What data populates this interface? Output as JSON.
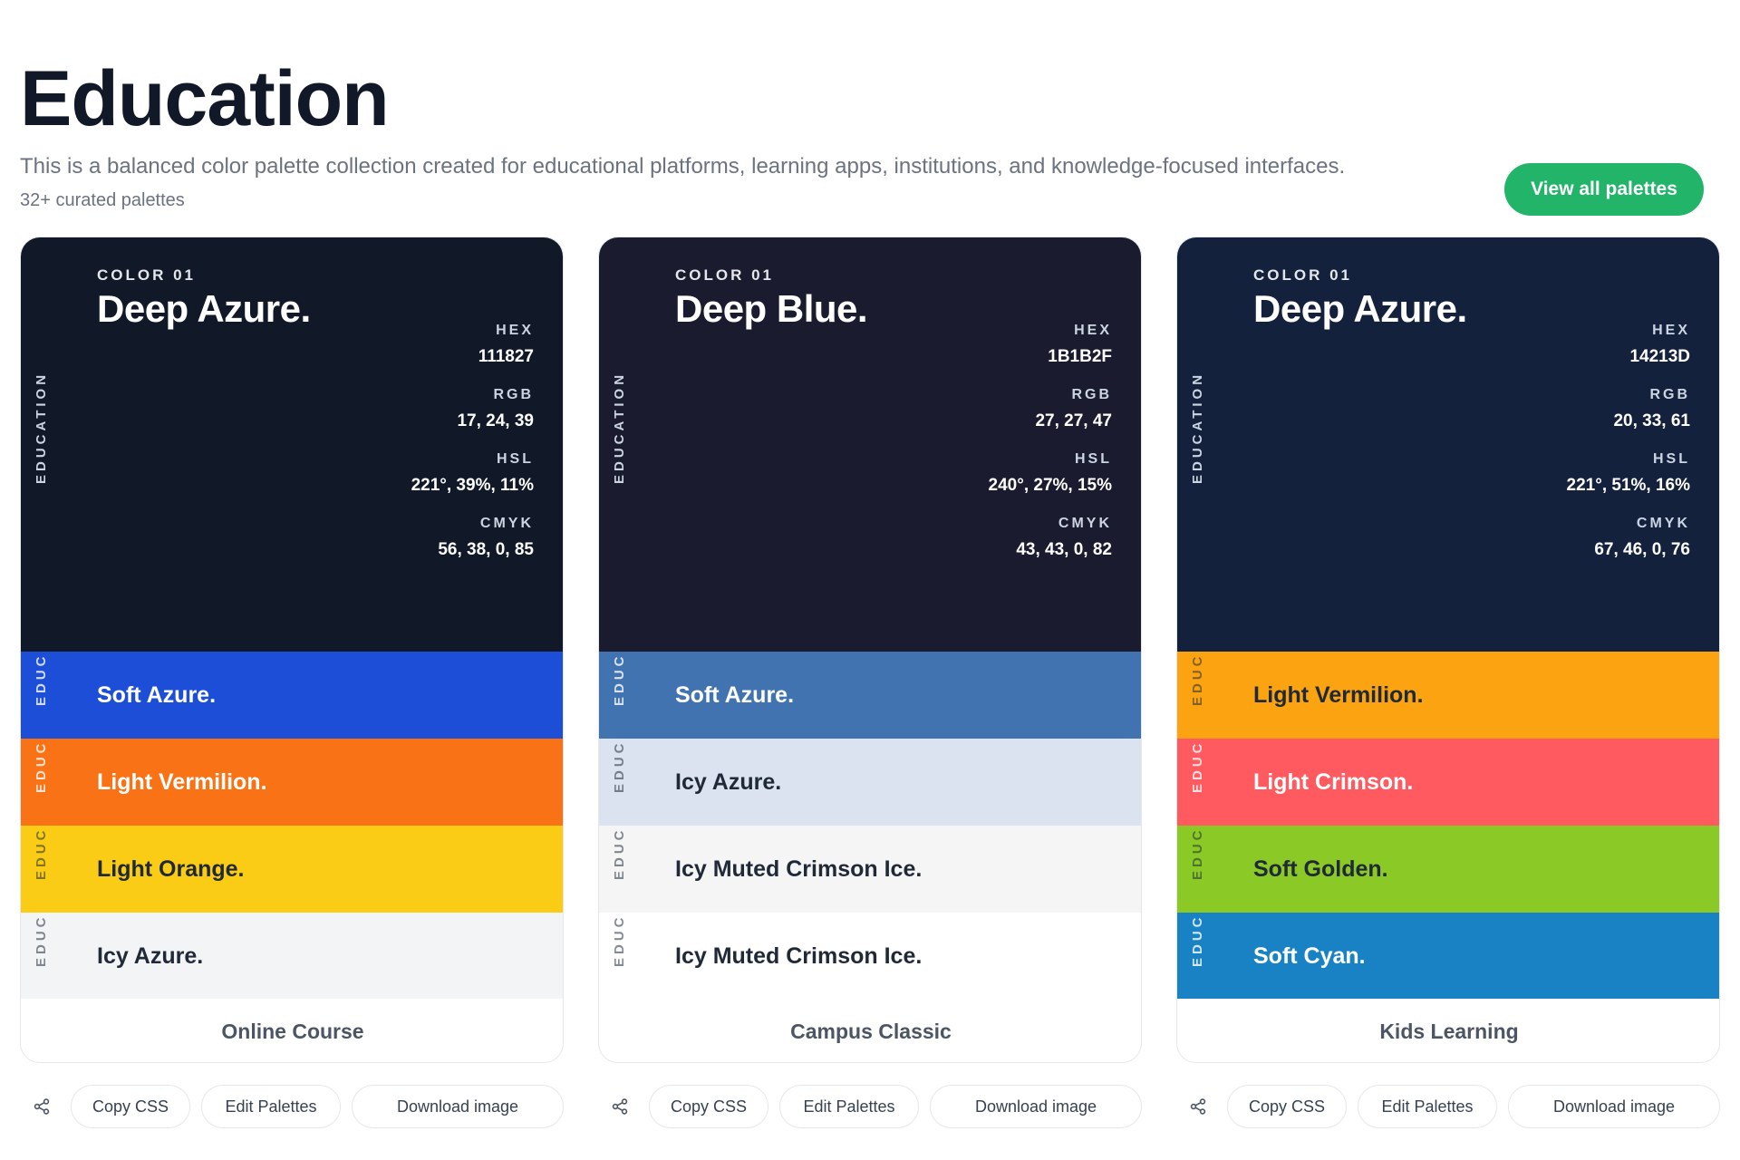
{
  "header": {
    "title": "Education",
    "description": "This is a balanced color palette collection created for educational platforms, learning apps, institutions, and knowledge-focused interfaces.",
    "count": "32+ curated palettes",
    "view_all_label": "View all palettes"
  },
  "labels": {
    "hex": "HEX",
    "rgb": "RGB",
    "hsl": "HSL",
    "cmyk": "CMYK",
    "category": "EDUCATION",
    "category_short": "EDUC"
  },
  "actions": {
    "copy_css": "Copy CSS",
    "edit_palettes": "Edit Palettes",
    "download_image": "Download image",
    "share_icon": "share-icon"
  },
  "palettes": [
    {
      "name": "Online Course",
      "main": {
        "index": "COLOR 01",
        "name": "Deep Azure.",
        "color": "#111827",
        "hex": "111827",
        "rgb": "17, 24, 39",
        "hsl": "221°, 39%, 11%",
        "cmyk": "56, 38, 0, 85"
      },
      "swatches": [
        {
          "name": "Soft Azure.",
          "color": "#1d4ed8",
          "text_color": "#ffffff"
        },
        {
          "name": "Light Vermilion.",
          "color": "#f97316",
          "text_color": "#ffffff"
        },
        {
          "name": "Light Orange.",
          "color": "#facc15",
          "text_color": "#1f2937"
        },
        {
          "name": "Icy Azure.",
          "color": "#f3f4f6",
          "text_color": "#1f2937"
        }
      ]
    },
    {
      "name": "Campus Classic",
      "main": {
        "index": "COLOR 01",
        "name": "Deep Blue.",
        "color": "#1b1b2f",
        "hex": "1B1B2F",
        "rgb": "27, 27, 47",
        "hsl": "240°, 27%, 15%",
        "cmyk": "43, 43, 0, 82"
      },
      "swatches": [
        {
          "name": "Soft Azure.",
          "color": "#4273b1",
          "text_color": "#ffffff"
        },
        {
          "name": "Icy Azure.",
          "color": "#dbe3f0",
          "text_color": "#1f2937"
        },
        {
          "name": "Icy Muted Crimson Ice.",
          "color": "#f6f5f5",
          "text_color": "#1f2937"
        },
        {
          "name": "Icy Muted Crimson Ice.",
          "color": "#ffffff",
          "text_color": "#1f2937"
        }
      ]
    },
    {
      "name": "Kids Learning",
      "main": {
        "index": "COLOR 01",
        "name": "Deep Azure.",
        "color": "#14213d",
        "hex": "14213D",
        "rgb": "20, 33, 61",
        "hsl": "221°, 51%, 16%",
        "cmyk": "67, 46, 0, 76"
      },
      "swatches": [
        {
          "name": "Light Vermilion.",
          "color": "#fca311",
          "text_color": "#1f2937"
        },
        {
          "name": "Light Crimson.",
          "color": "#ff5a5f",
          "text_color": "#ffffff"
        },
        {
          "name": "Soft Golden.",
          "color": "#8ac926",
          "text_color": "#1f2937"
        },
        {
          "name": "Soft Cyan.",
          "color": "#1982c4",
          "text_color": "#ffffff"
        }
      ]
    }
  ]
}
